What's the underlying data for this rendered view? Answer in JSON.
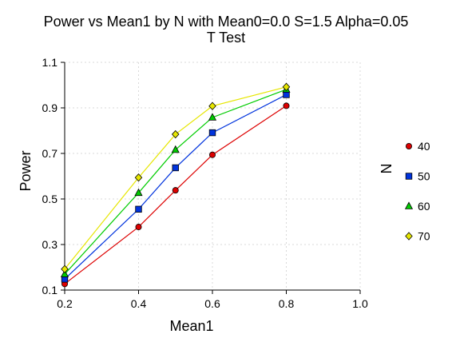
{
  "chart_data": {
    "type": "line",
    "title": "Power vs Mean1 by N with Mean0=0.0 S=1.5 Alpha=0.05",
    "subtitle": "T Test",
    "xlabel": "Mean1",
    "ylabel": "Power",
    "xlim": [
      0.2,
      1.0
    ],
    "ylim": [
      0.1,
      1.1
    ],
    "xticks": [
      "0.2",
      "0.4",
      "0.6",
      "0.8",
      "1.0"
    ],
    "yticks": [
      "0.1",
      "0.3",
      "0.5",
      "0.7",
      "0.9",
      "1.1"
    ],
    "grid": true,
    "legend_title": "N",
    "legend_position": "right",
    "x": [
      0.2,
      0.4,
      0.5,
      0.6,
      0.8
    ],
    "series": [
      {
        "name": "40",
        "values": [
          0.127,
          0.377,
          0.538,
          0.694,
          0.909
        ],
        "color": "#dd0000",
        "marker": "circle"
      },
      {
        "name": "50",
        "values": [
          0.148,
          0.455,
          0.637,
          0.791,
          0.958
        ],
        "color": "#0033dd",
        "marker": "square"
      },
      {
        "name": "60",
        "values": [
          0.17,
          0.527,
          0.716,
          0.858,
          0.981
        ],
        "color": "#00cc00",
        "marker": "triangle"
      },
      {
        "name": "70",
        "values": [
          0.192,
          0.594,
          0.784,
          0.908,
          0.992
        ],
        "color": "#e6e600",
        "marker": "diamond"
      }
    ]
  }
}
